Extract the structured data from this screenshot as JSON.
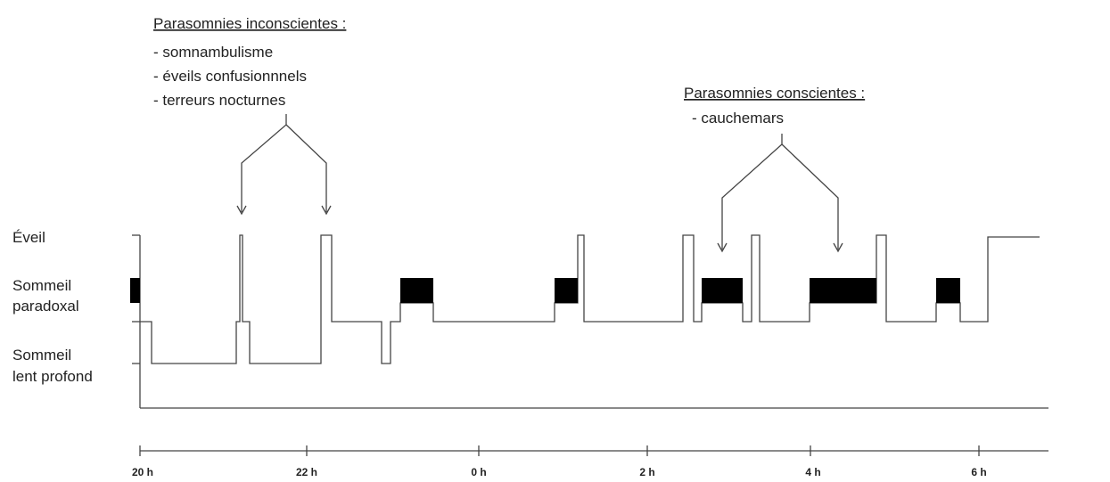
{
  "annotations": {
    "unconscious": {
      "title": "Parasomnies inconscientes :",
      "items": [
        "- somnambulisme",
        "- éveils confusionnnels",
        "- terreurs nocturnes"
      ]
    },
    "conscious": {
      "title": "Parasomnies conscientes :",
      "items": [
        "- cauchemars"
      ]
    }
  },
  "states": {
    "wake": "Éveil",
    "rem": [
      "Sommeil",
      "paradoxal"
    ],
    "deep": [
      "Sommeil",
      "lent profond"
    ]
  },
  "time_axis": {
    "ticks": [
      "20 h",
      "22 h",
      "0 h",
      "2 h",
      "4 h",
      "6 h"
    ]
  },
  "colors": {
    "line": "#444444",
    "rem_fill": "#000000",
    "text": "#222222"
  }
}
